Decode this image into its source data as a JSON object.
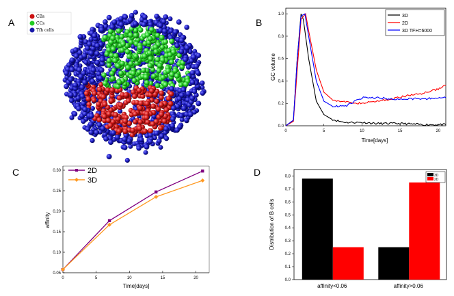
{
  "figure": {
    "panels": {
      "A": {
        "label": "A"
      },
      "B": {
        "label": "B"
      },
      "C": {
        "label": "C"
      },
      "D": {
        "label": "D"
      }
    }
  },
  "colors": {
    "cb": "#cc1111",
    "cc": "#22cc22",
    "tfh": "#1a1aaa",
    "black": "#000000",
    "red": "#ff0000",
    "blue": "#0000ff",
    "purple": "#800080",
    "orange": "#ff9922"
  },
  "chart_data": [
    {
      "panel": "A",
      "type": "scatter",
      "title": "",
      "description_3d": true,
      "legend": [
        "CBs",
        "CCs",
        "Tfh cells"
      ]
    },
    {
      "panel": "B",
      "type": "line",
      "xlabel": "Time[days]",
      "ylabel": "GC volume",
      "xlim": [
        0,
        21
      ],
      "ylim": [
        0,
        1.05
      ],
      "xticks": [
        0,
        5,
        10,
        15,
        20
      ],
      "yticks": [
        0.0,
        0.2,
        0.4,
        0.6,
        0.8,
        1.0
      ],
      "xtick_labels": [
        "0",
        "5",
        "10",
        "15",
        "20"
      ],
      "ytick_labels": [
        "0.0",
        "0.2",
        "0.4",
        "0.6",
        "0.8",
        "1.0"
      ],
      "legend_position": "top-right",
      "series": [
        {
          "name": "3D",
          "color": "#000000",
          "x": [
            0,
            1,
            1.5,
            2,
            2.3,
            3,
            4,
            5,
            6,
            7,
            8,
            10,
            12,
            15,
            18,
            21
          ],
          "y": [
            0,
            0.05,
            0.6,
            1.0,
            0.95,
            0.6,
            0.22,
            0.1,
            0.06,
            0.04,
            0.03,
            0.03,
            0.02,
            0.02,
            0.01,
            0.01
          ]
        },
        {
          "name": "2D",
          "color": "#ff0000",
          "x": [
            0,
            1,
            1.5,
            2,
            2.6,
            3,
            4,
            5,
            6,
            7,
            8,
            10,
            12,
            14,
            16,
            18,
            20,
            21
          ],
          "y": [
            0,
            0.04,
            0.5,
            0.95,
            1.0,
            0.85,
            0.5,
            0.3,
            0.24,
            0.22,
            0.21,
            0.2,
            0.22,
            0.24,
            0.27,
            0.29,
            0.33,
            0.36
          ]
        },
        {
          "name": "3D TFH=6000",
          "color": "#0000ff",
          "x": [
            0,
            1,
            1.5,
            2,
            2.5,
            3,
            4,
            5,
            6,
            7,
            8,
            9,
            10,
            12,
            14,
            16,
            18,
            21
          ],
          "y": [
            0,
            0.05,
            0.6,
            0.98,
            1.0,
            0.8,
            0.4,
            0.22,
            0.18,
            0.17,
            0.18,
            0.22,
            0.25,
            0.25,
            0.24,
            0.24,
            0.24,
            0.25
          ]
        }
      ]
    },
    {
      "panel": "C",
      "type": "line",
      "xlabel": "Time[days]",
      "ylabel": "affinity",
      "xlim": [
        0,
        22
      ],
      "ylim": [
        0.05,
        0.31
      ],
      "xticks": [
        0,
        5,
        10,
        15,
        20
      ],
      "yticks": [
        0.05,
        0.1,
        0.15,
        0.2,
        0.25,
        0.3
      ],
      "xtick_labels": [
        "0",
        "5",
        "10",
        "15",
        "20"
      ],
      "ytick_labels": [
        "0.05",
        "0.10",
        "0.15",
        "0.20",
        "0.25",
        "0.30"
      ],
      "legend_position": "top-left",
      "series": [
        {
          "name": "2D",
          "color": "#800080",
          "marker": "square",
          "x": [
            0,
            7,
            14,
            21
          ],
          "y": [
            0.058,
            0.177,
            0.247,
            0.298
          ]
        },
        {
          "name": "3D",
          "color": "#ff9922",
          "marker": "diamond",
          "x": [
            0,
            7,
            14,
            21
          ],
          "y": [
            0.058,
            0.167,
            0.235,
            0.275
          ]
        }
      ]
    },
    {
      "panel": "D",
      "type": "bar",
      "xlabel": "",
      "ylabel": "Distribution of B cells",
      "ylim": [
        0,
        0.85
      ],
      "yticks": [
        0.0,
        0.1,
        0.2,
        0.3,
        0.4,
        0.5,
        0.6,
        0.7,
        0.8
      ],
      "ytick_labels": [
        "0.0",
        "0.1",
        "0.2",
        "0.3",
        "0.4",
        "0.5",
        "0.6",
        "0.7",
        "0.8"
      ],
      "categories": [
        "affinity<0.06",
        "affinity>0.06"
      ],
      "legend_position": "top-right",
      "series": [
        {
          "name": "3D",
          "color": "#000000",
          "values": [
            0.78,
            0.25
          ]
        },
        {
          "name": "2D",
          "color": "#ff0000",
          "values": [
            0.25,
            0.75
          ]
        }
      ]
    }
  ]
}
